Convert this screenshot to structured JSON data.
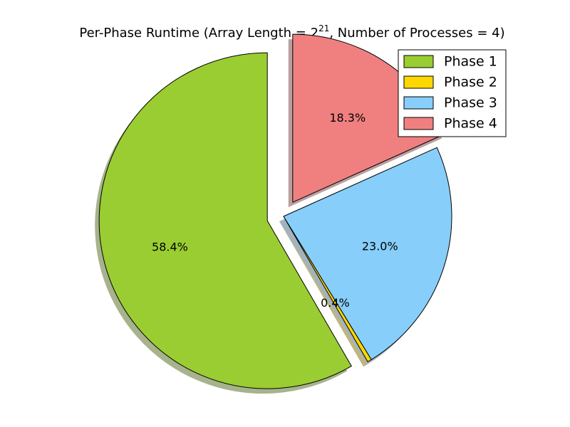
{
  "chart_data": {
    "type": "pie",
    "title": {
      "prefix": "Per-Phase Runtime (Array Length = 2",
      "superscript": "21",
      "suffix": ", Number of Processes = 4)"
    },
    "start_angle_deg": 90,
    "direction": "counterclockwise",
    "shadow": true,
    "legend_position": "top-right",
    "slices": [
      {
        "label": "Phase 1",
        "value": 58.4,
        "pct_label": "58.4%",
        "color": "#9ACD32",
        "explode": 0.1
      },
      {
        "label": "Phase 2",
        "value": 0.4,
        "pct_label": "0.4%",
        "color": "#FFD700",
        "explode": 0.0
      },
      {
        "label": "Phase 3",
        "value": 23.0,
        "pct_label": "23.0%",
        "color": "#87CEFA",
        "explode": 0.0
      },
      {
        "label": "Phase 4",
        "value": 18.3,
        "pct_label": "18.3%",
        "color": "#F08080",
        "explode": 0.1
      }
    ]
  }
}
